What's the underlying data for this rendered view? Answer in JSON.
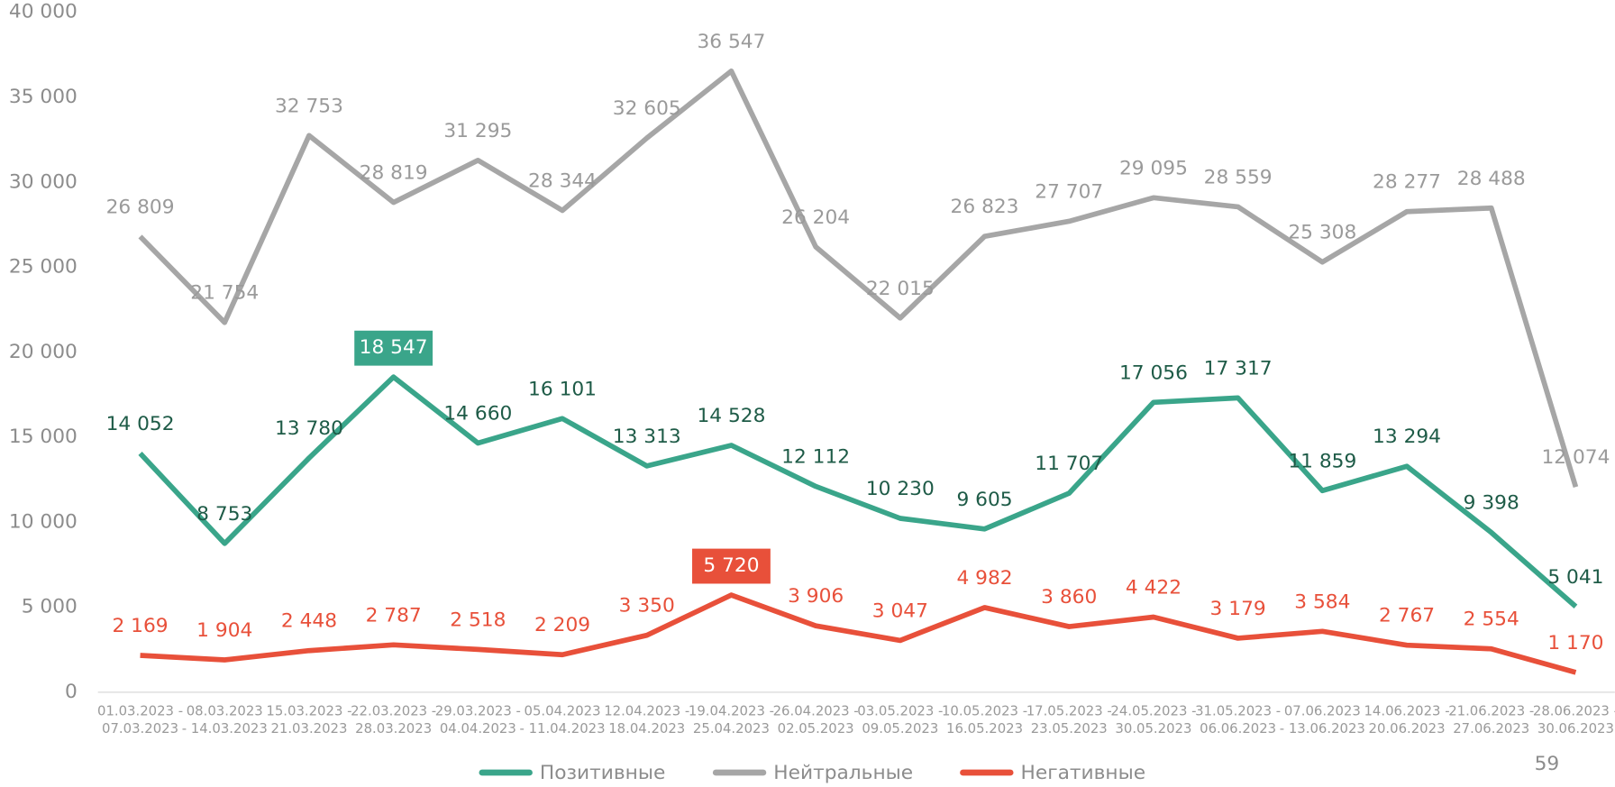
{
  "chart_data": {
    "type": "line",
    "categories": [
      [
        "01.03.2023 -",
        "07.03.2023"
      ],
      [
        "08.03.2023",
        "- 14.03.2023"
      ],
      [
        "15.03.2023 -",
        "21.03.2023"
      ],
      [
        "22.03.2023 -",
        "28.03.2023"
      ],
      [
        "29.03.2023 -",
        "04.04.2023"
      ],
      [
        "05.04.2023",
        "- 11.04.2023"
      ],
      [
        "12.04.2023 -",
        "18.04.2023"
      ],
      [
        "19.04.2023 -",
        "25.04.2023"
      ],
      [
        "26.04.2023 -",
        "02.05.2023"
      ],
      [
        "03.05.2023 -",
        "09.05.2023"
      ],
      [
        "10.05.2023 -",
        "16.05.2023"
      ],
      [
        "17.05.2023 -",
        "23.05.2023"
      ],
      [
        "24.05.2023 -",
        "30.05.2023"
      ],
      [
        "31.05.2023 -",
        "06.06.2023"
      ],
      [
        "07.06.2023",
        "- 13.06.2023"
      ],
      [
        "14.06.2023 -",
        "20.06.2023"
      ],
      [
        "21.06.2023 -",
        "27.06.2023"
      ],
      [
        "28.06.2023 -",
        "30.06.2023"
      ]
    ],
    "series": [
      {
        "name": "Позитивные",
        "color": "#3aa58a",
        "label_color": "#1e5b47",
        "values": [
          14052,
          8753,
          13780,
          18547,
          14660,
          16101,
          13313,
          14528,
          12112,
          10230,
          9605,
          11707,
          17056,
          17317,
          11859,
          13294,
          9398,
          5041
        ],
        "value_labels": [
          "14 052",
          "8 753",
          "13 780",
          "18 547",
          "14 660",
          "16 101",
          "13 313",
          "14 528",
          "12 112",
          "10 230",
          "9 605",
          "11 707",
          "17 056",
          "17 317",
          "11 859",
          "13 294",
          "9 398",
          "5 041"
        ],
        "highlight": [
          3
        ]
      },
      {
        "name": "Нейтральные",
        "color": "#a6a6a6",
        "label_color": "#9a9a9a",
        "values": [
          26809,
          21754,
          32753,
          28819,
          31295,
          28344,
          32605,
          36547,
          26204,
          22015,
          26823,
          27707,
          29095,
          28559,
          25308,
          28277,
          28488,
          12074
        ],
        "value_labels": [
          "26 809",
          "21 754",
          "32 753",
          "28 819",
          "31 295",
          "28 344",
          "32 605",
          "36 547",
          "26 204",
          "22 015",
          "26 823",
          "27 707",
          "29 095",
          "28 559",
          "25 308",
          "28 277",
          "28 488",
          "12 074"
        ],
        "highlight": []
      },
      {
        "name": "Негативные",
        "color": "#e8503a",
        "label_color": "#e8503a",
        "values": [
          2169,
          1904,
          2448,
          2787,
          2518,
          2209,
          3350,
          5720,
          3906,
          3047,
          4982,
          3860,
          4422,
          3179,
          3584,
          2767,
          2554,
          1170
        ],
        "value_labels": [
          "2 169",
          "1 904",
          "2 448",
          "2 787",
          "2 518",
          "2 209",
          "3 350",
          "5 720",
          "3 906",
          "3 047",
          "4 982",
          "3 860",
          "4 422",
          "3 179",
          "3 584",
          "2 767",
          "2 554",
          "1 170"
        ],
        "highlight": [
          7
        ]
      }
    ],
    "ylim": [
      0,
      40000
    ],
    "yticks": [
      0,
      {
        "value": 5000,
        "label": "5 000"
      },
      {
        "value": 10000,
        "label": "10 000"
      },
      {
        "value": 15000,
        "label": "15 000"
      },
      {
        "value": 20000,
        "label": "20 000"
      },
      {
        "value": 25000,
        "label": "25 000"
      },
      {
        "value": 30000,
        "label": "30 000"
      },
      {
        "value": 35000,
        "label": "35 000"
      },
      {
        "value": 40000,
        "label": "40 000"
      }
    ],
    "legend": "bottom",
    "page_number": "59"
  }
}
